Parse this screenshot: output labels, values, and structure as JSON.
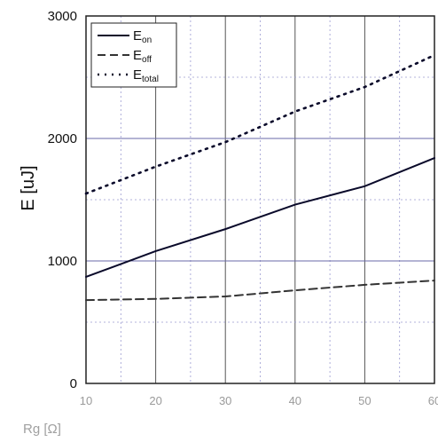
{
  "chart_data": {
    "type": "line",
    "ylabel": "E [uJ]",
    "xlabel": "Rg [Ω]",
    "xlim": [
      10,
      60
    ],
    "ylim": [
      0,
      3000
    ],
    "x_ticks": [
      "10",
      "20",
      "30",
      "40",
      "50",
      "60"
    ],
    "y_ticks": [
      "0",
      "1000",
      "2000",
      "3000"
    ],
    "grid": true,
    "legend_position": "top-left",
    "x": [
      10,
      20,
      30,
      40,
      50,
      60
    ],
    "series": [
      {
        "name": "Eon",
        "label_main": "E",
        "label_sub": "on",
        "style": "solid",
        "color": "#0a0a2a",
        "values": [
          870,
          1080,
          1260,
          1460,
          1610,
          1840
        ]
      },
      {
        "name": "Eoff",
        "label_main": "E",
        "label_sub": "off",
        "style": "dashed",
        "color": "#333333",
        "values": [
          680,
          690,
          710,
          760,
          805,
          840
        ]
      },
      {
        "name": "Etotal",
        "label_main": "E",
        "label_sub": "total",
        "style": "dotted",
        "color": "#0a0a2a",
        "values": [
          1550,
          1770,
          1970,
          2220,
          2420,
          2680
        ]
      }
    ]
  }
}
